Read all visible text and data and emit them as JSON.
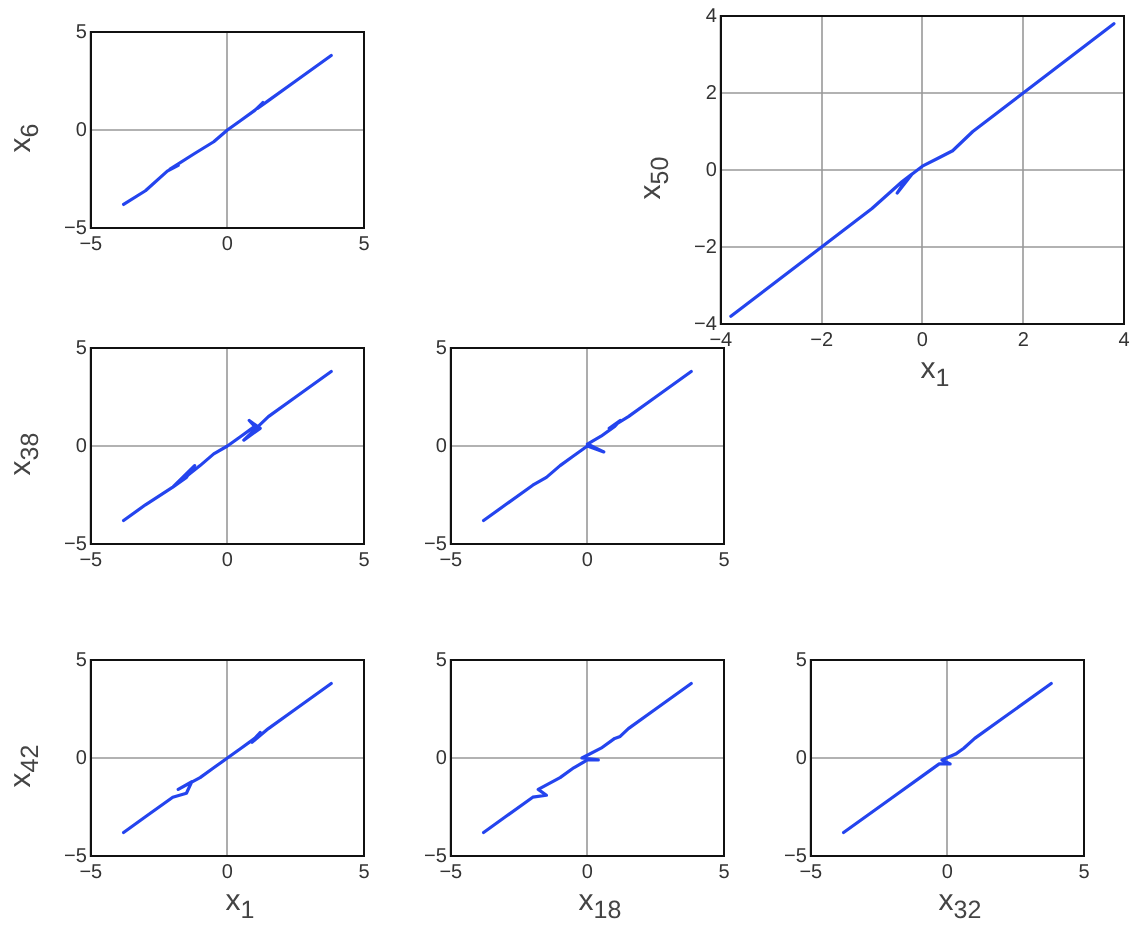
{
  "chart_data": [
    {
      "type": "line",
      "ylabel": "x$_{6}$",
      "xlim": [
        -5,
        5
      ],
      "ylim": [
        -5,
        5
      ],
      "xticks": [
        -5,
        0,
        5
      ],
      "yticks": [
        -5,
        0,
        5
      ],
      "grid": true,
      "marker": "none",
      "color": "#2444ee",
      "x": [
        -3.8,
        -3,
        -2.2,
        -1.8,
        -2.1,
        -1.2,
        -0.5,
        0,
        0.5,
        1,
        1.3,
        1.1,
        1.5,
        2.5,
        3.8
      ],
      "values": [
        -3.8,
        -3.1,
        -2.1,
        -1.8,
        -2,
        -1.2,
        -0.6,
        0,
        0.5,
        1,
        1.4,
        1.1,
        1.5,
        2.5,
        3.8
      ]
    },
    {
      "type": "line",
      "ylabel": "x$_{50}$",
      "xlabel": "x$_{1}$",
      "xlim": [
        -4,
        4
      ],
      "ylim": [
        -4,
        4
      ],
      "xticks": [
        -4,
        -2,
        0,
        2,
        4
      ],
      "yticks": [
        -4,
        -2,
        0,
        2,
        4
      ],
      "grid": true,
      "marker": "none",
      "color": "#2444ee",
      "x": [
        -3.8,
        -2,
        -1,
        -0.4,
        -0.2,
        -0.5,
        -0.3,
        0,
        0.3,
        0.6,
        1,
        2,
        3.8
      ],
      "values": [
        -3.8,
        -2,
        -1,
        -0.3,
        -0.1,
        -0.6,
        -0.2,
        0.1,
        0.3,
        0.5,
        1,
        2,
        3.8
      ]
    },
    {
      "type": "line",
      "ylabel": "x$_{38}$",
      "xlim": [
        -5,
        5
      ],
      "ylim": [
        -5,
        5
      ],
      "xticks": [
        -5,
        0,
        5
      ],
      "yticks": [
        -5,
        0,
        5
      ],
      "grid": true,
      "marker": "none",
      "color": "#2444ee",
      "x": [
        -3.8,
        -3,
        -2,
        -1.5,
        -1.2,
        -2,
        -1,
        -0.5,
        0,
        0.5,
        1,
        0.8,
        1.2,
        0.6,
        1.5,
        2.5,
        3.8
      ],
      "values": [
        -3.8,
        -3,
        -2.1,
        -1.6,
        -1,
        -2.1,
        -1,
        -0.4,
        0,
        0.5,
        1,
        1.3,
        0.9,
        0.3,
        1.5,
        2.5,
        3.8
      ]
    },
    {
      "type": "line",
      "xlim": [
        -5,
        5
      ],
      "ylim": [
        -5,
        5
      ],
      "xticks": [
        -5,
        0,
        5
      ],
      "yticks": [
        -5,
        0,
        5
      ],
      "grid": true,
      "marker": "none",
      "color": "#2444ee",
      "x": [
        -3.8,
        -3,
        -2,
        -1.5,
        -1,
        -0.5,
        0,
        0.6,
        0,
        0.5,
        1,
        1.2,
        0.8,
        1.5,
        2.5,
        3.8
      ],
      "values": [
        -3.8,
        -3,
        -2,
        -1.6,
        -1,
        -0.5,
        0,
        -0.3,
        0.1,
        0.5,
        1,
        1.3,
        0.9,
        1.5,
        2.5,
        3.8
      ]
    },
    {
      "type": "line",
      "ylabel": "x$_{42}$",
      "xlabel": "x$_{1}$",
      "xlim": [
        -5,
        5
      ],
      "ylim": [
        -5,
        5
      ],
      "xticks": [
        -5,
        0,
        5
      ],
      "yticks": [
        -5,
        0,
        5
      ],
      "grid": true,
      "marker": "none",
      "color": "#2444ee",
      "x": [
        -3.8,
        -3,
        -2,
        -1.5,
        -1.3,
        -1.8,
        -1,
        -0.5,
        0,
        0.5,
        1,
        1.2,
        0.9,
        1.5,
        2.5,
        3.8
      ],
      "values": [
        -3.8,
        -3,
        -2,
        -1.8,
        -1.2,
        -1.6,
        -1,
        -0.5,
        0,
        0.5,
        1,
        1.3,
        0.8,
        1.5,
        2.5,
        3.8
      ]
    },
    {
      "type": "line",
      "xlabel": "x$_{18}$",
      "xlim": [
        -5,
        5
      ],
      "ylim": [
        -5,
        5
      ],
      "xticks": [
        -5,
        0,
        5
      ],
      "yticks": [
        -5,
        0,
        5
      ],
      "grid": true,
      "marker": "none",
      "color": "#2444ee",
      "x": [
        -3.8,
        -3,
        -2,
        -1.5,
        -1.8,
        -1,
        -0.5,
        0,
        0.4,
        -0.2,
        0.5,
        1,
        1.2,
        1.5,
        2.5,
        3.8
      ],
      "values": [
        -3.8,
        -3,
        -2,
        -1.9,
        -1.6,
        -1,
        -0.5,
        -0.1,
        -0.1,
        0,
        0.5,
        1,
        1.1,
        1.5,
        2.5,
        3.8
      ]
    },
    {
      "type": "line",
      "xlabel": "x$_{32}$",
      "xlim": [
        -5,
        5
      ],
      "ylim": [
        -5,
        5
      ],
      "xticks": [
        -5,
        0,
        5
      ],
      "yticks": [
        -5,
        0,
        5
      ],
      "grid": true,
      "marker": "none",
      "color": "#2444ee",
      "x": [
        -3.8,
        -2,
        -1,
        -0.3,
        0.1,
        -0.2,
        0.3,
        0.6,
        1,
        2,
        3.8
      ],
      "values": [
        -3.8,
        -2,
        -1,
        -0.3,
        -0.3,
        -0.1,
        0.2,
        0.5,
        1,
        2,
        3.8
      ]
    }
  ]
}
